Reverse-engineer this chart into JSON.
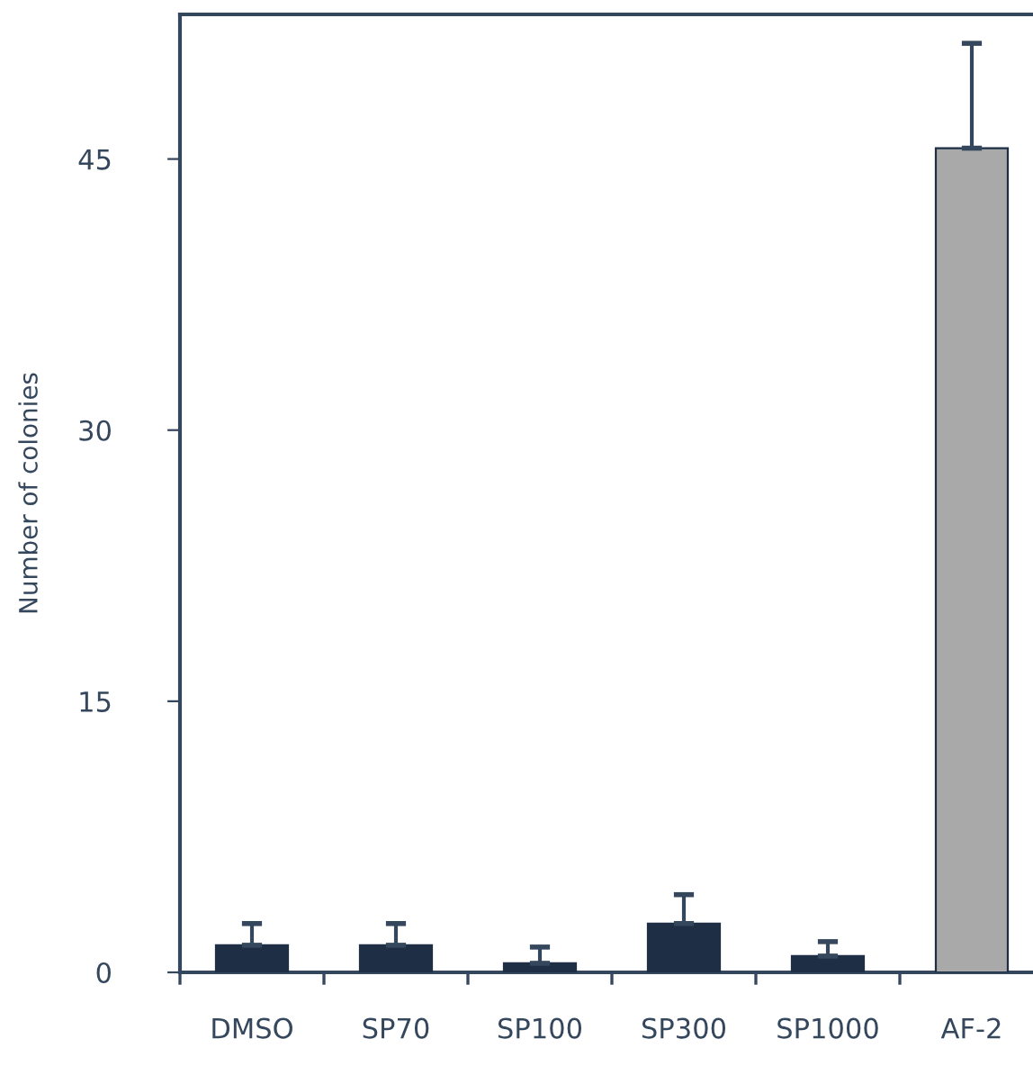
{
  "chart_data": {
    "type": "bar",
    "ylabel": "Number of colonies",
    "categories": [
      "DMSO",
      "SP70",
      "SP100",
      "SP300",
      "SP1000",
      "AF-2"
    ],
    "values": [
      1.5,
      1.5,
      0.5,
      2.7,
      0.9,
      45.6
    ],
    "errors": [
      [
        1.5,
        2.7
      ],
      [
        1.5,
        2.7
      ],
      [
        0.5,
        1.4
      ],
      [
        2.7,
        4.3
      ],
      [
        0.9,
        1.7
      ],
      [
        45.6,
        51.4
      ]
    ],
    "colors": [
      "#1e2f45",
      "#1e2f45",
      "#1e2f45",
      "#1e2f45",
      "#1e2f45",
      "#a9a9a9"
    ],
    "ylim": [
      0,
      53
    ],
    "yticks": [
      0,
      15,
      30,
      45
    ],
    "grid": false,
    "legend": false
  }
}
